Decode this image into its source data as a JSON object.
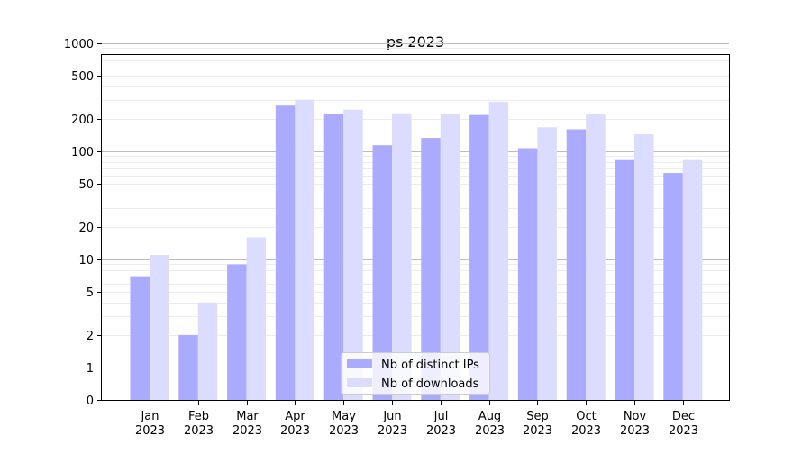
{
  "chart_data": {
    "type": "bar",
    "title": "ps 2023",
    "xlabel": "",
    "ylabel": "",
    "yscale": "symlog",
    "ylim": [
      0,
      1300
    ],
    "yticks": [
      0,
      1,
      2,
      5,
      10,
      20,
      50,
      100,
      200,
      500,
      1000
    ],
    "ytick_labels": [
      "0",
      "1",
      "2",
      "5",
      "10",
      "20",
      "50",
      "100",
      "200",
      "500",
      "1000"
    ],
    "grid": "horizontal",
    "legend_position": "bottom-center",
    "categories": [
      [
        "Jan",
        "2023"
      ],
      [
        "Feb",
        "2023"
      ],
      [
        "Mar",
        "2023"
      ],
      [
        "Apr",
        "2023"
      ],
      [
        "May",
        "2023"
      ],
      [
        "Jun",
        "2023"
      ],
      [
        "Jul",
        "2023"
      ],
      [
        "Aug",
        "2023"
      ],
      [
        "Sep",
        "2023"
      ],
      [
        "Oct",
        "2023"
      ],
      [
        "Nov",
        "2023"
      ],
      [
        "Dec",
        "2023"
      ]
    ],
    "series": [
      {
        "name": "Nb of distinct IPs",
        "color": "#aaaaff",
        "values": [
          7,
          2,
          9,
          265,
          222,
          114,
          133,
          217,
          107,
          160,
          83,
          63
        ]
      },
      {
        "name": "Nb of downloads",
        "color": "#dcdcff",
        "values": [
          11,
          4,
          16,
          300,
          243,
          225,
          222,
          287,
          167,
          221,
          144,
          83
        ]
      }
    ]
  }
}
